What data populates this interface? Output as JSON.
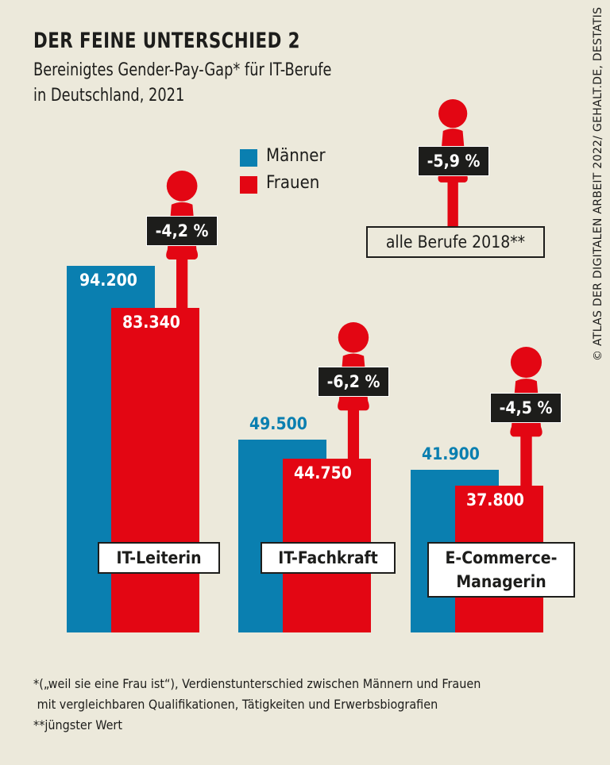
{
  "chart_data": {
    "type": "bar",
    "title": "DER FEINE UNTERSCHIED 2",
    "subtitle": [
      "Bereinigtes Gender-Pay-Gap* für IT-Berufe",
      "in Deutschland, 2021"
    ],
    "categories": [
      "IT-Leiterin",
      "IT-Fachkraft",
      "E-Commerce-Managerin"
    ],
    "category_lines": [
      [
        "IT-Leiterin"
      ],
      [
        "IT-Fachkraft"
      ],
      [
        "E-Commerce-",
        "Managerin"
      ]
    ],
    "series": [
      {
        "name": "Männer",
        "color": "#0a7fb0",
        "values": [
          94200,
          49500,
          41900
        ],
        "labels": [
          "94.200",
          "49.500",
          "41.900"
        ]
      },
      {
        "name": "Frauen",
        "color": "#e30613",
        "values": [
          83340,
          44750,
          37800
        ],
        "labels": [
          "83.340",
          "44.750",
          "37.800"
        ]
      }
    ],
    "gaps": [
      "-4,2 %",
      "-6,2 %",
      "-4,5 %"
    ],
    "overall": {
      "gap": "-5,9 %",
      "label": "alle Berufe 2018**"
    },
    "ylim": [
      0,
      94200
    ],
    "grid": false,
    "legend": "top-center"
  },
  "source": "© ATLAS DER DIGITALEN ARBEIT 2022/ GEHALT.DE, DESTATIS",
  "footnotes": [
    "*(„weil sie eine Frau ist“), Verdienstunterschied zwischen Männern und Frauen",
    " mit vergleichbaren Qualifikationen, Tätigkeiten und Erwerbsbiografien",
    "**jüngster Wert"
  ],
  "icons": {
    "figure": "woman-figure-icon"
  }
}
